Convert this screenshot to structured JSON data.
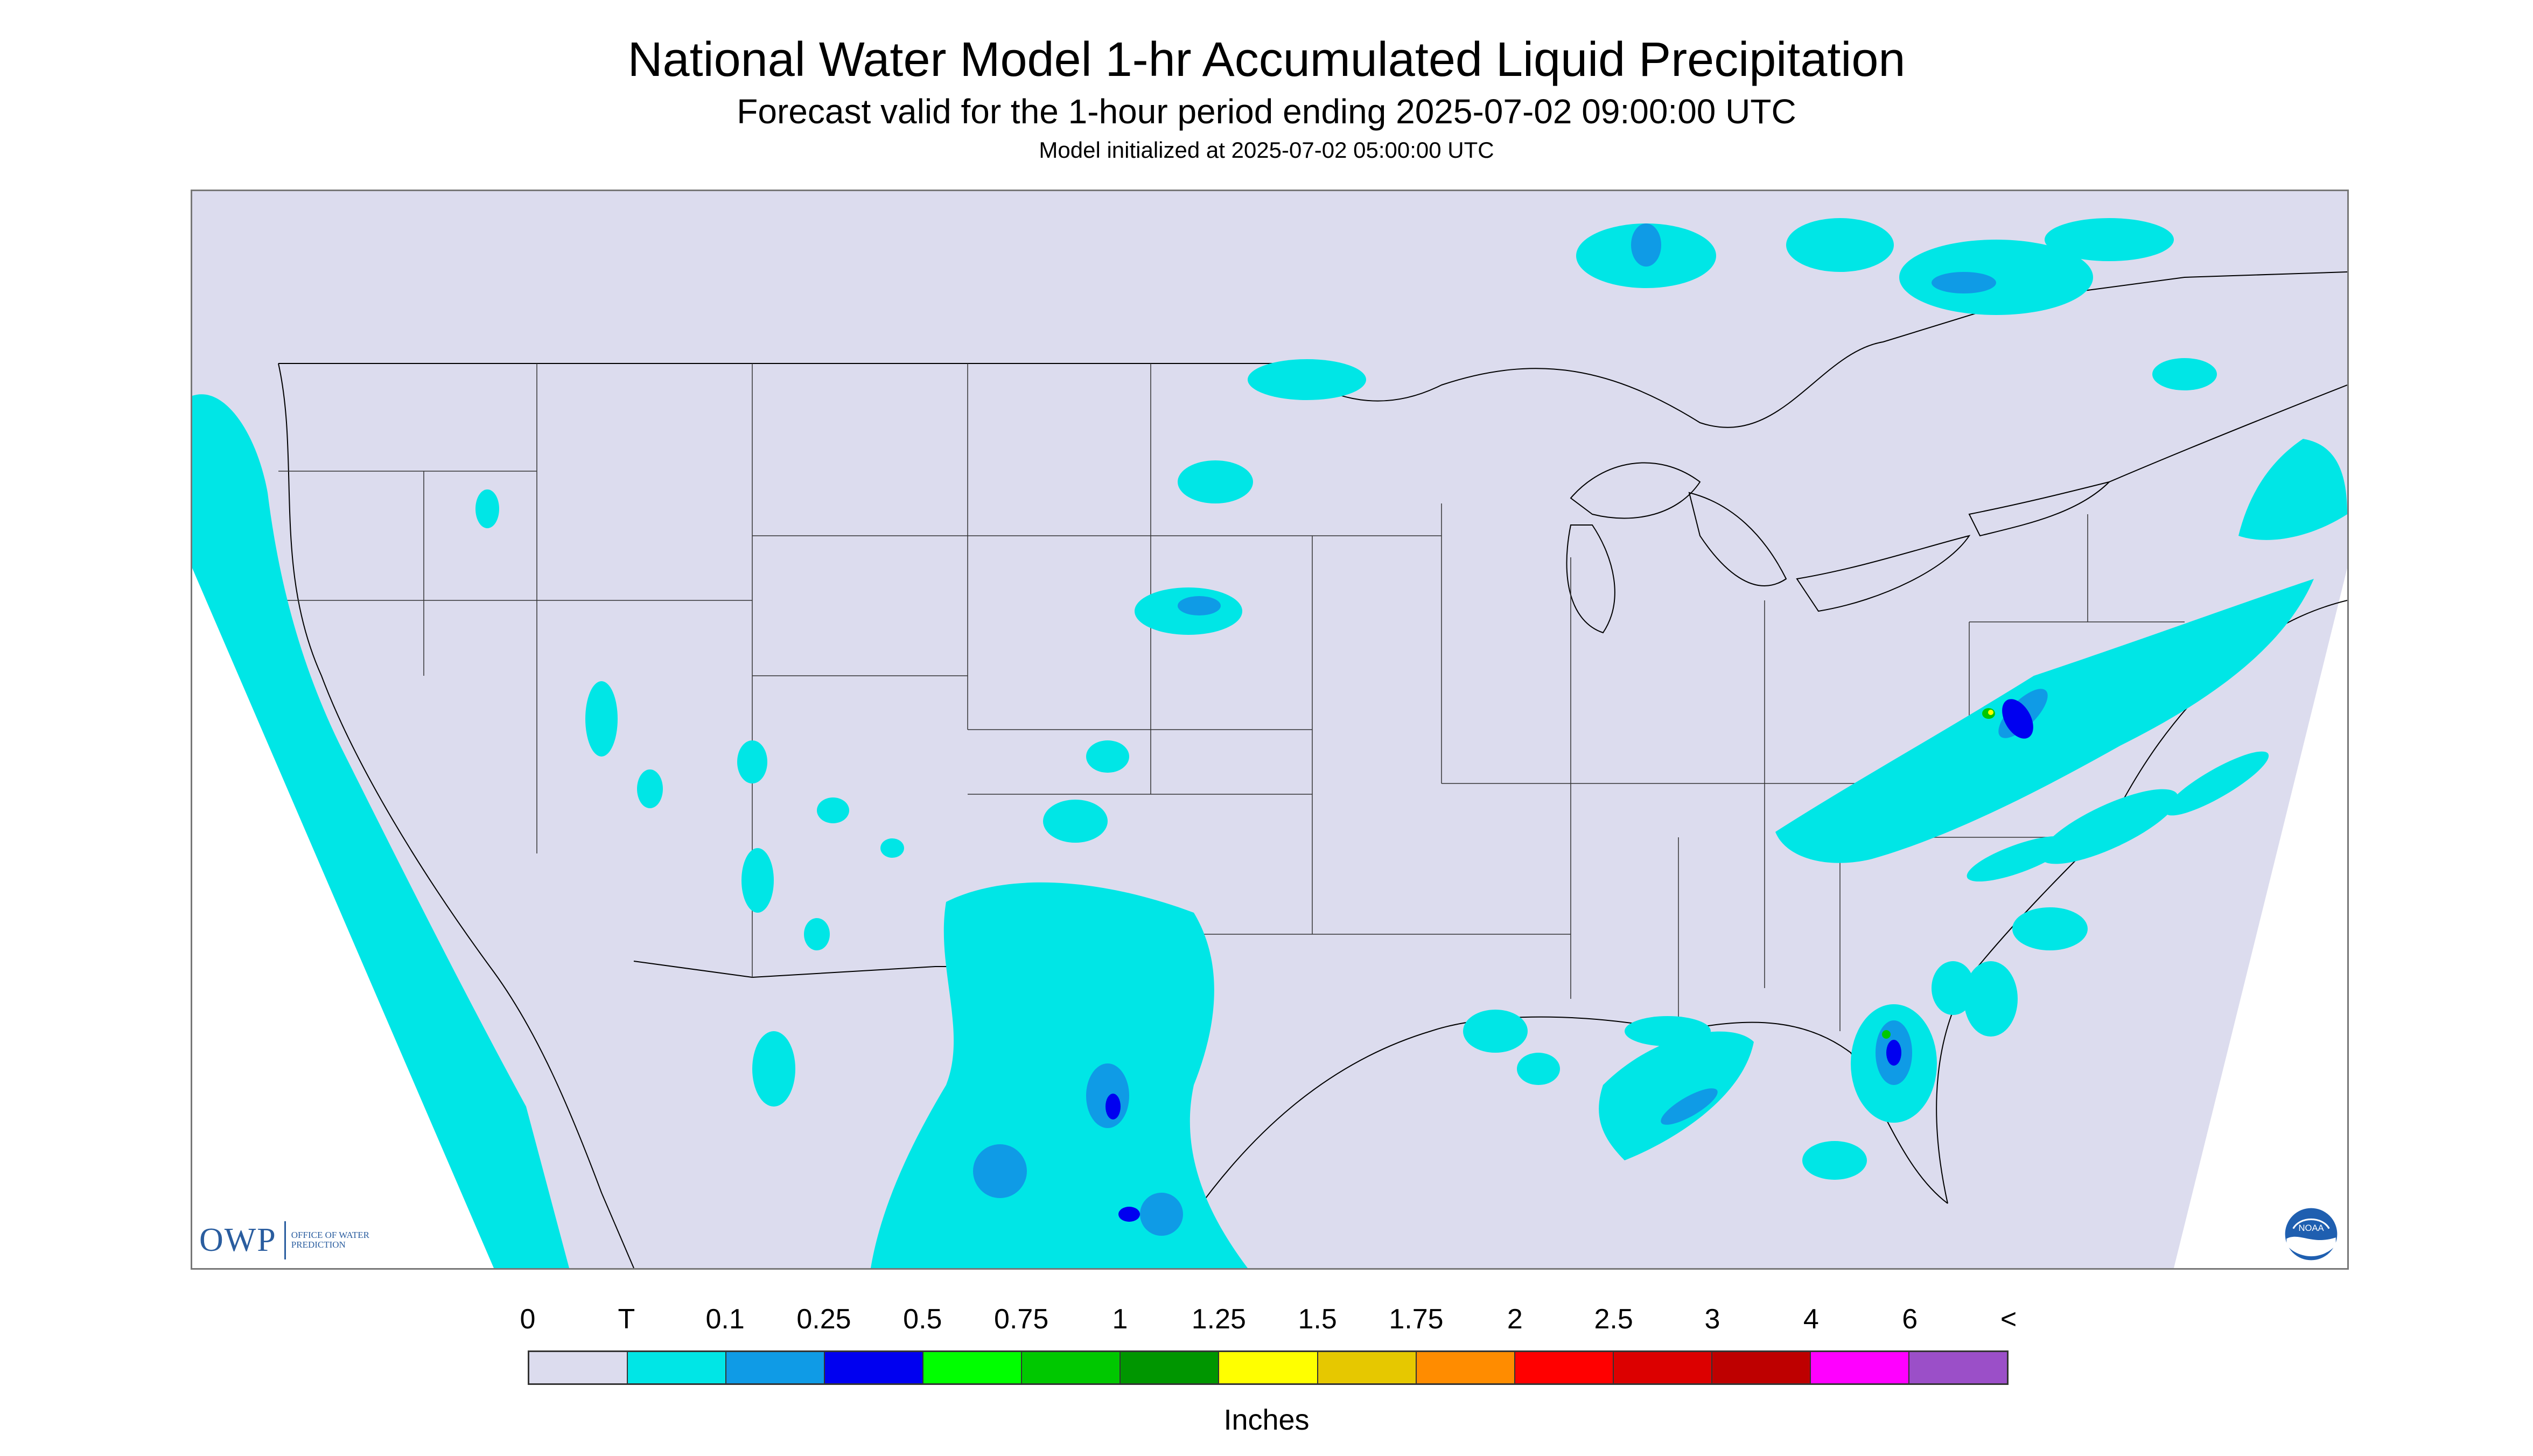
{
  "header": {
    "title": "National Water Model 1-hr Accumulated Liquid Precipitation",
    "subtitle": "Forecast valid for the 1-hour period ending 2025-07-02 09:00:00 UTC",
    "model_init": "Model initialized at 2025-07-02 05:00:00 UTC"
  },
  "logos": {
    "owp_letters": "OWP",
    "owp_text": "Office of Water Prediction",
    "noaa": "NOAA"
  },
  "legend": {
    "labels": [
      "0",
      "T",
      "0.1",
      "0.25",
      "0.5",
      "0.75",
      "1",
      "1.25",
      "1.5",
      "1.75",
      "2",
      "2.5",
      "3",
      "4",
      "6",
      "<"
    ],
    "colors": [
      "#dcdcee",
      "#00e6e6",
      "#0f9be6",
      "#0000f0",
      "#00ff00",
      "#00c800",
      "#009600",
      "#ffff00",
      "#e6c800",
      "#ff8c00",
      "#ff0000",
      "#dc0000",
      "#be0000",
      "#ff00ff",
      "#9b4fc8"
    ],
    "units": "Inches"
  },
  "map": {
    "domain_color": "#dcdcee",
    "outside_color": "#ffffff",
    "boundary_color": "#000000",
    "precip_colors": {
      "trace": "#00e6e6",
      "light": "#0f9be6",
      "moderate": "#0000f0",
      "heavy": "#00c800",
      "very_heavy": "#ffff00"
    }
  }
}
